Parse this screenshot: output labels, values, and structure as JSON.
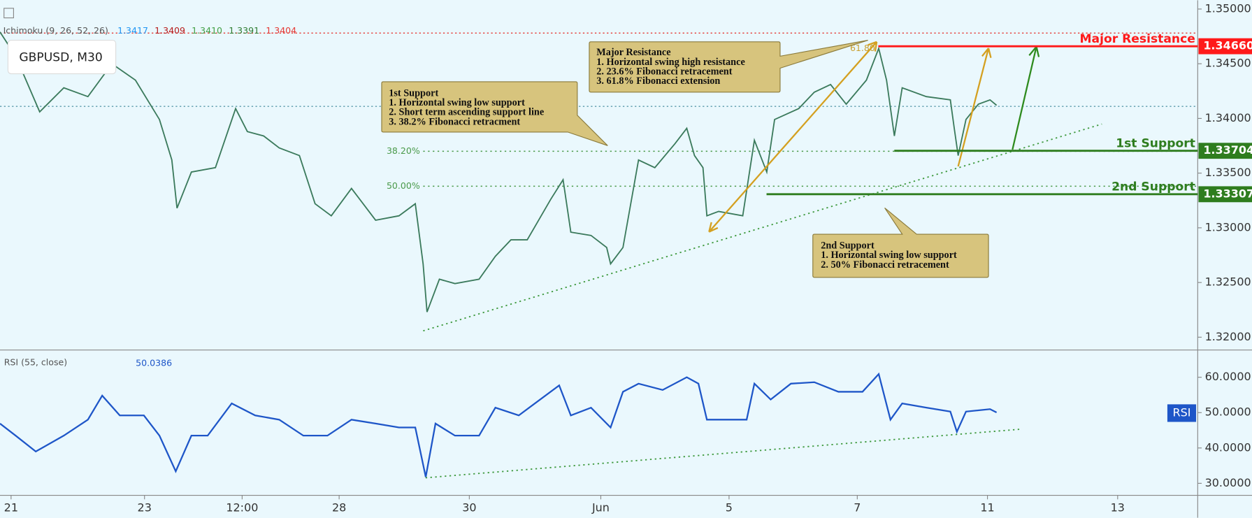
{
  "header": {
    "symbol": "GBPUSD, M30",
    "indicator": "Ichimoku (9, 26, 52, 26)",
    "indicator_values": [
      {
        "text": "1.3417",
        "color": "#2196f3"
      },
      {
        "text": "1.3409",
        "color": "#b71c1c"
      },
      {
        "text": "1.3410",
        "color": "#43a047"
      },
      {
        "text": "1.3391",
        "color": "#2e7d32"
      },
      {
        "text": "1.3404",
        "color": "#e53935"
      }
    ]
  },
  "annotations": [
    {
      "lines": [
        "1st Support",
        "1. Horizontal swing low support",
        "2. Short term ascending support line",
        "3. 38.2% Fibonacci retracment"
      ]
    },
    {
      "lines": [
        "Major Resistance",
        "1. Horizontal swing high resistance",
        "2. 23.6% Fibonacci retracement",
        "3. 61.8% Fibonacci extension"
      ]
    },
    {
      "lines": [
        "2nd Support",
        "1. Horizontal swing low support",
        "2. 50% Fibonacci retracement"
      ]
    }
  ],
  "chart_data": [
    {
      "type": "line",
      "color": "#3b7a5c",
      "x": [
        -0.17,
        0.07,
        0.44,
        0.81,
        1.18,
        1.55,
        1.91,
        2.28,
        2.47,
        2.55,
        2.77,
        3.14,
        3.45,
        3.63,
        3.88,
        4.12,
        4.43,
        4.67,
        4.92,
        5.23,
        5.6,
        5.96,
        6.21,
        6.33,
        6.39,
        6.58,
        6.82,
        7.19,
        7.44,
        7.68,
        7.93,
        8.29,
        8.48,
        8.6,
        8.91,
        9.15,
        9.21,
        9.4,
        9.64,
        9.89,
        10.2,
        10.38,
        10.5,
        10.63,
        10.69,
        10.87,
        11.24,
        11.42,
        11.61,
        11.73,
        12.1,
        12.34,
        12.59,
        12.83,
        13.14,
        13.33,
        13.45,
        13.57,
        13.69,
        14.06,
        14.43,
        14.49,
        14.55,
        14.67,
        14.86,
        15.04,
        15.14
      ],
      "values": [
        1.3479,
        1.3457,
        1.3406,
        1.3428,
        1.342,
        1.345,
        1.3435,
        1.3399,
        1.3362,
        1.3318,
        1.3351,
        1.3355,
        1.3409,
        1.3388,
        1.3384,
        1.3373,
        1.3366,
        1.3322,
        1.3311,
        1.3336,
        1.3307,
        1.3311,
        1.3322,
        1.3267,
        1.3223,
        1.3253,
        1.3249,
        1.3253,
        1.3274,
        1.3289,
        1.3289,
        1.3326,
        1.3344,
        1.3296,
        1.3293,
        1.3282,
        1.3267,
        1.3282,
        1.3362,
        1.3355,
        1.3377,
        1.3391,
        1.3366,
        1.3355,
        1.3311,
        1.3315,
        1.3311,
        1.338,
        1.3351,
        1.3399,
        1.3409,
        1.3424,
        1.3431,
        1.3413,
        1.3435,
        1.3464,
        1.3435,
        1.3384,
        1.3428,
        1.342,
        1.3417,
        1.3391,
        1.3366,
        1.3399,
        1.3413,
        1.3417,
        1.3412
      ],
      "xlim": [
        -0.17,
        18.23
      ],
      "ylim": [
        1.3189,
        1.3508
      ],
      "yticks": [
        {
          "value": 1.35,
          "label": "1.35000"
        },
        {
          "value": 1.345,
          "label": "1.34500"
        },
        {
          "value": 1.34,
          "label": "1.34000"
        },
        {
          "value": 1.335,
          "label": "1.33500"
        },
        {
          "value": 1.33,
          "label": "1.33000"
        },
        {
          "value": 1.325,
          "label": "1.32500"
        },
        {
          "value": 1.32,
          "label": "1.32000"
        }
      ],
      "levels": [
        {
          "name": "Major Resistance",
          "value": 1.3466,
          "label": "1.34660",
          "color": "#ff1a1a"
        },
        {
          "name": "1st Support",
          "value": 1.33704,
          "label": "1.33704",
          "color": "#2e7d1e"
        },
        {
          "name": "2nd Support",
          "value": 1.33307,
          "label": "1.33307",
          "color": "#2e7d1e"
        }
      ],
      "fib_levels": [
        {
          "value": 1.337,
          "label": "38.20%"
        },
        {
          "value": 1.3338,
          "label": "50.00%"
        },
        {
          "value": 1.3464,
          "label": "61.80"
        }
      ],
      "dotted_lines": [
        {
          "value": 1.3478,
          "color": "#e53935"
        },
        {
          "value": 1.3411,
          "color": "#5b9bab"
        }
      ]
    },
    {
      "type": "line",
      "title": "RSI (55, close)",
      "last_value": "50.0386",
      "badge": "RSI",
      "color": "#1e56c8",
      "x": [
        -0.17,
        0.07,
        0.38,
        0.81,
        1.18,
        1.4,
        1.67,
        2.04,
        2.28,
        2.53,
        2.77,
        3.02,
        3.39,
        3.75,
        4.12,
        4.49,
        4.86,
        5.23,
        5.6,
        5.96,
        6.21,
        6.37,
        6.52,
        6.82,
        7.19,
        7.44,
        7.8,
        8.42,
        8.6,
        8.91,
        9.21,
        9.4,
        9.64,
        10.01,
        10.38,
        10.56,
        10.69,
        10.99,
        11.3,
        11.42,
        11.67,
        11.98,
        12.34,
        12.71,
        13.08,
        13.33,
        13.51,
        13.69,
        14.06,
        14.43,
        14.53,
        14.67,
        15.04,
        15.14
      ],
      "values": [
        46.9,
        43.5,
        39.0,
        43.5,
        48.0,
        54.8,
        49.2,
        49.2,
        43.5,
        33.4,
        43.5,
        43.5,
        52.6,
        49.2,
        48.0,
        43.5,
        43.5,
        48.0,
        46.9,
        45.8,
        45.8,
        31.8,
        46.9,
        43.5,
        43.5,
        51.4,
        49.2,
        57.7,
        49.2,
        51.4,
        45.8,
        55.9,
        58.2,
        56.4,
        60.0,
        58.2,
        48.0,
        48.0,
        48.0,
        58.2,
        53.7,
        58.2,
        58.6,
        55.9,
        55.9,
        60.9,
        48.0,
        52.6,
        51.4,
        50.3,
        44.6,
        50.3,
        51.0,
        50.04
      ],
      "xlim": [
        -0.17,
        18.23
      ],
      "ylim": [
        26.6,
        67.7
      ],
      "yticks": [
        {
          "value": 60,
          "label": "60.0000"
        },
        {
          "value": 50,
          "label": "50.0000"
        },
        {
          "value": 40,
          "label": "40.0000"
        },
        {
          "value": 30,
          "label": "30.0000"
        }
      ],
      "xticks": [
        {
          "value": 0,
          "label": "21"
        },
        {
          "value": 2.05,
          "label": "23"
        },
        {
          "value": 3.55,
          "label": "12:00"
        },
        {
          "value": 5.04,
          "label": "28"
        },
        {
          "value": 7.04,
          "label": "30"
        },
        {
          "value": 9.06,
          "label": "Jun"
        },
        {
          "value": 11.03,
          "label": "5"
        },
        {
          "value": 13,
          "label": "7"
        },
        {
          "value": 15,
          "label": "11"
        },
        {
          "value": 17,
          "label": "13"
        }
      ]
    }
  ]
}
